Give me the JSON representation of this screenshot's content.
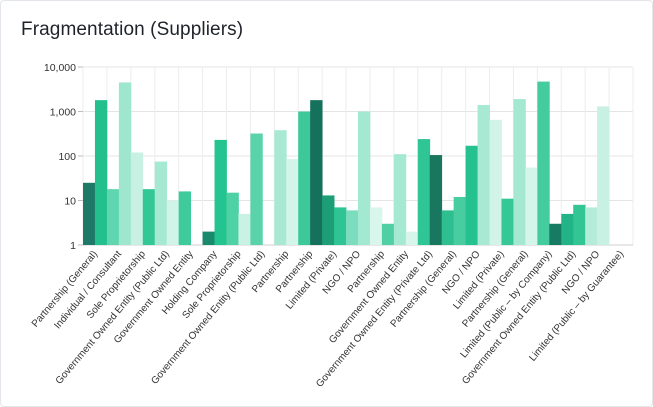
{
  "card": {
    "title": "Fragmentation (Suppliers)"
  },
  "chart_data": {
    "type": "bar",
    "title": "Fragmentation (Suppliers)",
    "y_scale": "log",
    "ylim": [
      1,
      10000
    ],
    "y_ticks": [
      {
        "value": 1,
        "label": "1"
      },
      {
        "value": 10,
        "label": "10"
      },
      {
        "value": 100,
        "label": "100"
      },
      {
        "value": 1000,
        "label": "1,000"
      },
      {
        "value": 10000,
        "label": "10,000"
      }
    ],
    "grid": true,
    "categories": [
      "Partnership (General)",
      "Individual / Consultant",
      "Sole Proprietorship",
      "Government Owned Entity (Public Ltd)",
      "Government Owned Entity",
      "Holding Company",
      "Sole Proprietorship",
      "Government Owned Entity (Public Ltd)",
      "Partnership",
      "Partnership",
      "Limited (Private)",
      "NGO / NPO",
      "Partnership",
      "Government Owned Entity",
      "Government Owned Entity (Private Ltd)",
      "Partnership (General)",
      "NGO / NPO",
      "Limited (Private)",
      "Partnership (General)",
      "Limited (Public – by Company)",
      "Government Owned Entity (Public Ltd)",
      "NGO / NPO",
      "Limited (Public – by Guarantee)"
    ],
    "bars": [
      {
        "category_index": 0,
        "value": 25,
        "color": "#1e7a66"
      },
      {
        "category_index": 0,
        "value": 1800,
        "color": "#23c08d"
      },
      {
        "category_index": 1,
        "value": 18,
        "color": "#5fd6af"
      },
      {
        "category_index": 1,
        "value": 4500,
        "color": "#9fe6cf"
      },
      {
        "category_index": 2,
        "value": 120,
        "color": "#c8f1e3"
      },
      {
        "category_index": 2,
        "value": 18,
        "color": "#34c796"
      },
      {
        "category_index": 3,
        "value": 75,
        "color": "#a6e9d3"
      },
      {
        "category_index": 3,
        "value": 10,
        "color": "#d0f4e8"
      },
      {
        "category_index": 4,
        "value": 16,
        "color": "#3fca9b"
      },
      {
        "category_index": 5,
        "value": 2,
        "color": "#1b8a6c"
      },
      {
        "category_index": 5,
        "value": 230,
        "color": "#24c490"
      },
      {
        "category_index": 6,
        "value": 15,
        "color": "#4fd1a6"
      },
      {
        "category_index": 6,
        "value": 5,
        "color": "#c9f1e4"
      },
      {
        "category_index": 7,
        "value": 320,
        "color": "#5ad3aa"
      },
      {
        "category_index": 8,
        "value": 380,
        "color": "#a9e9d4"
      },
      {
        "category_index": 8,
        "value": 85,
        "color": "#d3f5e9"
      },
      {
        "category_index": 9,
        "value": 1000,
        "color": "#3cc899"
      },
      {
        "category_index": 9,
        "value": 1800,
        "color": "#15705c"
      },
      {
        "category_index": 10,
        "value": 13,
        "color": "#1d9e77"
      },
      {
        "category_index": 10,
        "value": 7,
        "color": "#2ec493"
      },
      {
        "category_index": 11,
        "value": 6,
        "color": "#7bddbd"
      },
      {
        "category_index": 11,
        "value": 1000,
        "color": "#a3e8d1"
      },
      {
        "category_index": 12,
        "value": 7,
        "color": "#d8f6ec"
      },
      {
        "category_index": 12,
        "value": 3,
        "color": "#4fcfa3"
      },
      {
        "category_index": 13,
        "value": 110,
        "color": "#a6e9d3"
      },
      {
        "category_index": 13,
        "value": 2,
        "color": "#d7f5eb"
      },
      {
        "category_index": 14,
        "value": 240,
        "color": "#2fc594"
      },
      {
        "category_index": 14,
        "value": 105,
        "color": "#19775f"
      },
      {
        "category_index": 15,
        "value": 6,
        "color": "#2fbe8f"
      },
      {
        "category_index": 15,
        "value": 12,
        "color": "#48cda0"
      },
      {
        "category_index": 16,
        "value": 170,
        "color": "#25c18f"
      },
      {
        "category_index": 16,
        "value": 1400,
        "color": "#a7e9d3"
      },
      {
        "category_index": 17,
        "value": 650,
        "color": "#d2f4e8"
      },
      {
        "category_index": 17,
        "value": 11,
        "color": "#35c796"
      },
      {
        "category_index": 18,
        "value": 1900,
        "color": "#a4e8d1"
      },
      {
        "category_index": 18,
        "value": 55,
        "color": "#d6f5ea"
      },
      {
        "category_index": 19,
        "value": 4700,
        "color": "#45cc9e"
      },
      {
        "category_index": 19,
        "value": 3,
        "color": "#177a62"
      },
      {
        "category_index": 20,
        "value": 5,
        "color": "#22b487"
      },
      {
        "category_index": 20,
        "value": 8,
        "color": "#33c594"
      },
      {
        "category_index": 21,
        "value": 7,
        "color": "#b4ecd9"
      },
      {
        "category_index": 21,
        "value": 1300,
        "color": "#c9f1e3"
      }
    ]
  }
}
